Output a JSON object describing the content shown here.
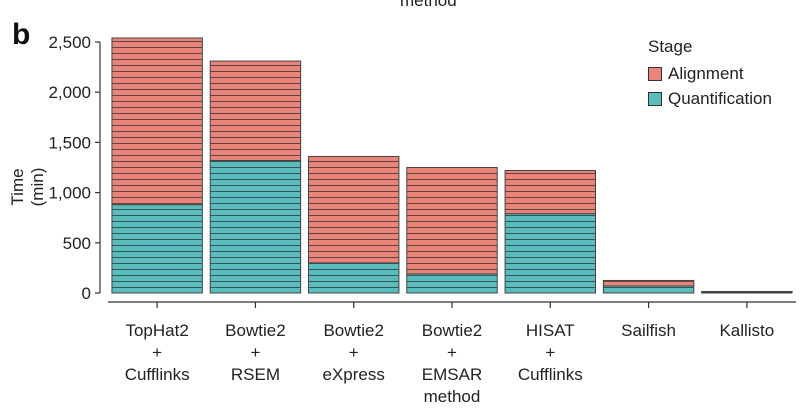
{
  "panel_letter": "b",
  "partial_title": "method",
  "chart_data": {
    "type": "bar",
    "stacked": true,
    "categories": [
      [
        "TopHat2",
        "+",
        "Cufflinks"
      ],
      [
        "Bowtie2",
        "+",
        "RSEM"
      ],
      [
        "Bowtie2",
        "+",
        "eXpress"
      ],
      [
        "Bowtie2",
        "+",
        "EMSAR",
        "method"
      ],
      [
        "HISAT",
        "+",
        "Cufflinks"
      ],
      [
        "Sailfish"
      ],
      [
        "Kallisto"
      ]
    ],
    "series": [
      {
        "name": "Quantification",
        "values": [
          880,
          1320,
          300,
          190,
          790,
          70,
          10
        ]
      },
      {
        "name": "Alignment",
        "values": [
          1660,
          990,
          1060,
          1060,
          430,
          55,
          5
        ]
      }
    ],
    "ylabel": "Time (min)",
    "ylim": [
      0,
      2500
    ],
    "yticks": [
      0,
      500,
      1000,
      1500,
      2000,
      2500
    ],
    "ytick_labels": [
      "0",
      "500",
      "1,000",
      "1,500",
      "2,000",
      "2,500"
    ],
    "legend": {
      "title": "Stage",
      "position": "top-right",
      "entries": [
        "Alignment",
        "Quantification"
      ]
    },
    "colors": {
      "Alignment": "#e8847a",
      "Quantification": "#5bbcbe",
      "stripe": "#2a2a2a"
    }
  }
}
